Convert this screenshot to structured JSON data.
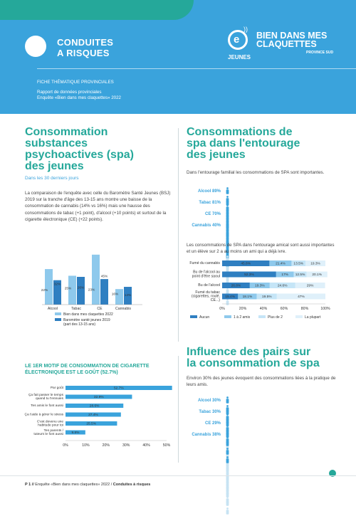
{
  "header": {
    "title_line1": "CONDUITES",
    "title_line2": "A RISQUES",
    "info_line1": "FICHE THÉMATIQUE PROVINCIALES",
    "info_line2": "Rapport de données provinciales",
    "info_line3": "Enquête «Bien dans mes claquettes» 2022",
    "logo_line1": "BIEN DANS MES",
    "logo_line2": "CLAQUETTES",
    "logo_province": "PROVINCE SUD",
    "logo_jeunes": "JEUNES",
    "logo_letter": "e"
  },
  "section1": {
    "title_l1": "Consommation",
    "title_l2": "substances",
    "title_l3": "psychoactives (spa)",
    "title_l4": "des jeunes",
    "subtitle": "Dans les 30 derniers jours",
    "paragraph": "La comparaison de l'enquête avec celle du Baromètre Santé Jeunes (BSJ) 2019 sur la tranche d'âge des 13-15 ans montre une baisse de la consommation de cannabis (14% vs 16%) mais une hausse des consommations de tabac (+1 point), d'alcool (+10 points) et surtout de la cigarette électronique (CE) (+22 points)."
  },
  "section2": {
    "title_l1": "Consommations de",
    "title_l2": "spa dans l'entourage",
    "title_l3": "des jeunes",
    "intro": "Dans l'entourage familial les consommations de SPA sont importantes.",
    "family": [
      {
        "label": "Alcool 89%",
        "value": 89
      },
      {
        "label": "Tabac 81%",
        "value": 81
      },
      {
        "label": "CE 70%",
        "value": 70
      },
      {
        "label": "Cannabis 40%",
        "value": 40
      }
    ],
    "friends_para": "Les consommations de SPA dans l'entourage amical sont aussi importantes et un élève sur 2 a au moins un ami qui a déjà ivre."
  },
  "section3": {
    "motif_title_l1": "LE 1ER MOTIF DE CONSOMMATION DE CIGARETTE",
    "motif_title_l2": "ÉLECTRONIQUE EST LE GOÛT (52.7%)"
  },
  "section4": {
    "title_l1": "Influence des pairs sur",
    "title_l2": "la consommation de spa",
    "intro": "Environ 30% des jeunes évoquent des consommations liées à la pratique de leurs amis.",
    "peers": [
      {
        "label": "Alcool 30%",
        "value": 30
      },
      {
        "label": "Tabac 30%",
        "value": 30
      },
      {
        "label": "CE 29%",
        "value": 29
      },
      {
        "label": "Cannabis 38%",
        "value": 38
      }
    ]
  },
  "footer": {
    "page": "P 1 //",
    "text": "Enquête «Bien dans mes claquettes» 2022 /",
    "bold": "Conduites à risques"
  },
  "colors": {
    "teal": "#25a89a",
    "blue": "#3aa3dc",
    "dark_blue": "#2f7fc1",
    "light_blue": "#8ec9ec",
    "pale_blue": "#c5e5f7",
    "paler_blue": "#dff0fa"
  },
  "chart_data": [
    {
      "type": "bar",
      "categories": [
        "Alcool",
        "Tabac",
        "CE",
        "Cannabis"
      ],
      "series": [
        {
          "name": "Bien dans mes claquettes 2022",
          "values": [
            32,
            26,
            45,
            14
          ]
        },
        {
          "name": "Baromètre santé jeunes 2019 (part des 13-15 ans)",
          "values": [
            22,
            25,
            23,
            16
          ]
        }
      ],
      "labels": [
        "22%",
        "32%",
        "25%",
        "26%",
        "23%",
        "45%",
        "16%",
        "14%"
      ],
      "legend_line1": "Bien dans mes claquettes 2022",
      "legend_line2": "Baromètre santé jeunes 2019",
      "legend_line3": "(part des 13-15 ans)",
      "ylim": [
        0,
        50
      ]
    },
    {
      "type": "bar",
      "orientation": "horizontal-stacked",
      "categories": [
        "Fumé du cannabis",
        "Bu de l'alcool au point d'être saoul",
        "Bu de l'alcool",
        "Fumé du tabac (cigarettes, roulé, CE...)"
      ],
      "category_lines": [
        [
          "Fumé du cannabis"
        ],
        [
          "Bu de l'alcool au",
          "point d'être saoul"
        ],
        [
          "Bu de l'alcool"
        ],
        [
          "Fumé du tabac",
          "(cigarettes, roulé,",
          "CE...)"
        ]
      ],
      "series": [
        {
          "name": "Aucun",
          "values": [
            45.8,
            52.3,
            26.8,
            15.4
          ]
        },
        {
          "name": "1 à 2 amis",
          "values": [
            21.4,
            17,
            19.3,
            18.1
          ]
        },
        {
          "name": "Plus de 2",
          "values": [
            13.5,
            12.5,
            24.6,
            19.5
          ]
        },
        {
          "name": "La plupart",
          "values": [
            19.3,
            20.1,
            29,
            47
          ]
        }
      ],
      "value_labels": [
        [
          "45.8%",
          "21.4%",
          "13.5%",
          "19.3%"
        ],
        [
          "52.3%",
          "17%",
          "12.5%",
          "20.1%"
        ],
        [
          "26.8%",
          "19.3%",
          "24.6%",
          "29%"
        ],
        [
          "15.4%",
          "18.1%",
          "19.5%",
          "47%"
        ]
      ],
      "xticks": [
        "0%",
        "20%",
        "40%",
        "60%",
        "80%",
        "100%"
      ],
      "xlim": [
        0,
        100
      ]
    },
    {
      "type": "bar",
      "orientation": "horizontal",
      "categories": [
        "Par goût",
        "Ça fait passer le temps quand tu t'ennuies",
        "Tes amis le font aussi",
        "Ça t'aide à gérer le stress",
        "C'est devenu une habitude pour toi",
        "Tes parents / tuteurs le font aussi"
      ],
      "category_lines": [
        [
          "Par goût"
        ],
        [
          "Ça fait passer le temps",
          "quand tu t'ennuies"
        ],
        [
          "Tes amis le font aussi"
        ],
        [
          "Ça t'aide à gérer le stress"
        ],
        [
          "C'est devenu une",
          "habitude pour toi"
        ],
        [
          "Tes parents /",
          "tuteurs le font aussi"
        ]
      ],
      "values": [
        52.7,
        32.9,
        28.6,
        27.4,
        25.5,
        9.8
      ],
      "value_labels": [
        "52.7%",
        "32.9%",
        "28.6%",
        "27.4%",
        "25.5%",
        "9.8%"
      ],
      "xticks": [
        "0%",
        "10%",
        "20%",
        "30%",
        "40%",
        "50%"
      ],
      "xlim": [
        0,
        50
      ]
    }
  ]
}
